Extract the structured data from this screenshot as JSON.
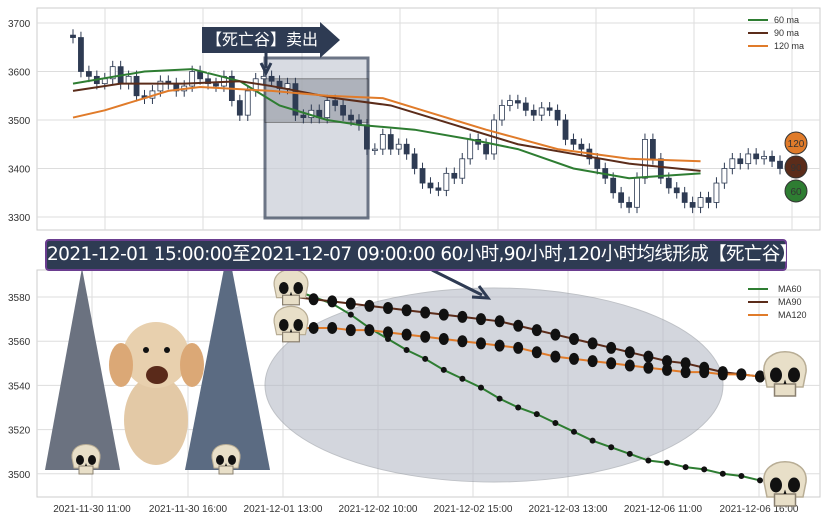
{
  "chart_data": [
    {
      "type": "candlestick+line",
      "title": "",
      "ylim": [
        3270,
        3730
      ],
      "yticks": [
        3300,
        3400,
        3500,
        3600,
        3700
      ],
      "grid": true,
      "legend": "top-right",
      "closes": [
        3670,
        3600,
        3590,
        3575,
        3585,
        3610,
        3575,
        3590,
        3550,
        3545,
        3560,
        3580,
        3575,
        3560,
        3570,
        3600,
        3585,
        3575,
        3570,
        3590,
        3540,
        3510,
        3560,
        3585,
        3590,
        3580,
        3565,
        3575,
        3510,
        3505,
        3520,
        3505,
        3540,
        3530,
        3510,
        3500,
        3490,
        3440,
        3440,
        3470,
        3440,
        3450,
        3430,
        3400,
        3370,
        3360,
        3355,
        3390,
        3380,
        3420,
        3460,
        3450,
        3430,
        3500,
        3530,
        3540,
        3535,
        3520,
        3510,
        3525,
        3520,
        3500,
        3460,
        3450,
        3440,
        3420,
        3400,
        3380,
        3350,
        3330,
        3320,
        3380,
        3460,
        3420,
        3380,
        3360,
        3350,
        3330,
        3320,
        3340,
        3330,
        3370,
        3400,
        3420,
        3410,
        3430,
        3420,
        3425,
        3415,
        3400
      ],
      "series": [
        {
          "name": "60 ma",
          "color": "#2e7d32",
          "points": [
            [
              0,
              3575
            ],
            [
              9,
              3600
            ],
            [
              15,
              3605
            ],
            [
              21,
              3580
            ],
            [
              26,
              3530
            ],
            [
              32,
              3500
            ],
            [
              36,
              3490
            ],
            [
              43,
              3480
            ],
            [
              50,
              3460
            ],
            [
              56,
              3440
            ],
            [
              63,
              3400
            ],
            [
              70,
              3380
            ],
            [
              79,
              3390
            ]
          ]
        },
        {
          "name": "90 ma",
          "color": "#5b2c1a",
          "points": [
            [
              0,
              3560
            ],
            [
              6,
              3575
            ],
            [
              14,
              3575
            ],
            [
              21,
              3580
            ],
            [
              25,
              3570
            ],
            [
              33,
              3545
            ],
            [
              40,
              3530
            ],
            [
              48,
              3490
            ],
            [
              56,
              3450
            ],
            [
              63,
              3430
            ],
            [
              70,
              3410
            ],
            [
              79,
              3395
            ]
          ]
        },
        {
          "name": "120 ma",
          "color": "#e07b2a",
          "points": [
            [
              0,
              3505
            ],
            [
              4,
              3520
            ],
            [
              12,
              3560
            ],
            [
              16,
              3568
            ],
            [
              25,
              3560
            ],
            [
              32,
              3550
            ],
            [
              39,
              3545
            ],
            [
              44,
              3520
            ],
            [
              52,
              3480
            ],
            [
              61,
              3440
            ],
            [
              70,
              3420
            ],
            [
              79,
              3415
            ]
          ]
        }
      ],
      "badges": [
        {
          "label": "120",
          "color": "#e07b2a"
        },
        {
          "label": "90",
          "color": "#5b2c1a"
        },
        {
          "label": "60",
          "color": "#2e7d32"
        }
      ],
      "annotation": "【死亡谷】卖出点"
    },
    {
      "type": "line",
      "title": "",
      "ylim": [
        3490,
        3592
      ],
      "yticks": [
        3500,
        3520,
        3540,
        3560,
        3580
      ],
      "grid": true,
      "legend": "top-right",
      "xticks": [
        "2021-11-30 11:00",
        "2021-11-30 16:00",
        "2021-12-01 13:00",
        "2021-12-02 10:00",
        "2021-12-02 15:00",
        "2021-12-03 13:00",
        "2021-12-06 11:00",
        "2021-12-06 16:00"
      ],
      "series": [
        {
          "name": "MA60",
          "color": "#2e7d32",
          "values": [
            3583,
            3580,
            3577,
            3572,
            3566,
            3561,
            3556,
            3552,
            3547,
            3543,
            3539,
            3534,
            3530,
            3527,
            3523,
            3519,
            3515,
            3512,
            3509,
            3506,
            3505,
            3503,
            3502,
            3500,
            3499,
            3497
          ]
        },
        {
          "name": "MA90",
          "color": "#5b2c1a",
          "values": [
            3580,
            3579,
            3578,
            3577,
            3576,
            3575,
            3574,
            3573,
            3572,
            3571,
            3570,
            3569,
            3567,
            3565,
            3563,
            3561,
            3559,
            3557,
            3555,
            3553,
            3551,
            3550,
            3548,
            3546,
            3545,
            3544
          ]
        },
        {
          "name": "MA120",
          "color": "#e07b2a",
          "values": [
            3566,
            3566,
            3566,
            3565,
            3565,
            3564,
            3563,
            3562,
            3561,
            3560,
            3559,
            3558,
            3557,
            3555,
            3553,
            3552,
            3551,
            3550,
            3549,
            3548,
            3547,
            3546,
            3546,
            3545,
            3545,
            3544
          ]
        }
      ],
      "banner": "2021-12-01 15:00:00至2021-12-07 09:00:00 60小时,90小时,120小时均线形成【死亡谷】卖出点"
    }
  ]
}
